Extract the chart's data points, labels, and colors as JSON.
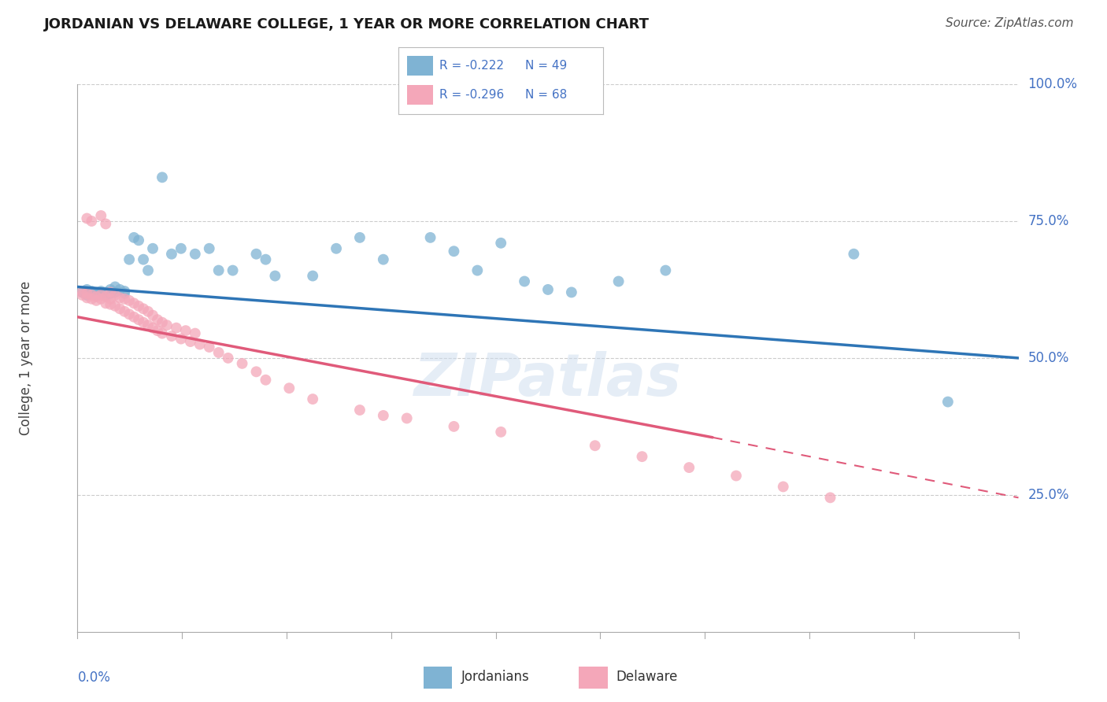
{
  "title": "JORDANIAN VS DELAWARE COLLEGE, 1 YEAR OR MORE CORRELATION CHART",
  "source": "Source: ZipAtlas.com",
  "ylabel": "College, 1 year or more",
  "xmin": 0.0,
  "xmax": 0.2,
  "ymin": 0.0,
  "ymax": 1.0,
  "ytick_vals": [
    0.25,
    0.5,
    0.75,
    1.0
  ],
  "ytick_labels": [
    "25.0%",
    "50.0%",
    "75.0%",
    "100.0%"
  ],
  "blue_color": "#7FB3D3",
  "pink_color": "#F4A7B9",
  "line_blue_color": "#2E75B6",
  "line_pink_color": "#E05A7A",
  "watermark": "ZIPatlas",
  "background_color": "#ffffff",
  "grid_color": "#cccccc",
  "blue_r": "-0.222",
  "blue_n": "49",
  "pink_r": "-0.296",
  "pink_n": "68",
  "blue_line_x0": 0.0,
  "blue_line_y0": 0.63,
  "blue_line_x1": 0.2,
  "blue_line_y1": 0.5,
  "pink_line_solid_x0": 0.0,
  "pink_line_solid_y0": 0.575,
  "pink_line_solid_x1": 0.135,
  "pink_line_solid_y1": 0.355,
  "pink_line_dash_x0": 0.135,
  "pink_line_dash_y0": 0.355,
  "pink_line_dash_x1": 0.2,
  "pink_line_dash_y1": 0.245,
  "blue_x": [
    0.001,
    0.002,
    0.002,
    0.003,
    0.003,
    0.004,
    0.004,
    0.005,
    0.005,
    0.006,
    0.006,
    0.007,
    0.007,
    0.008,
    0.008,
    0.009,
    0.01,
    0.01,
    0.011,
    0.012,
    0.013,
    0.014,
    0.015,
    0.016,
    0.018,
    0.02,
    0.022,
    0.025,
    0.028,
    0.03,
    0.033,
    0.038,
    0.04,
    0.042,
    0.05,
    0.055,
    0.06,
    0.065,
    0.075,
    0.08,
    0.085,
    0.09,
    0.095,
    0.1,
    0.105,
    0.115,
    0.125,
    0.165,
    0.185
  ],
  "blue_y": [
    0.62,
    0.615,
    0.625,
    0.618,
    0.622,
    0.62,
    0.615,
    0.622,
    0.618,
    0.62,
    0.615,
    0.625,
    0.618,
    0.62,
    0.63,
    0.625,
    0.618,
    0.622,
    0.68,
    0.72,
    0.715,
    0.68,
    0.66,
    0.7,
    0.83,
    0.69,
    0.7,
    0.69,
    0.7,
    0.66,
    0.66,
    0.69,
    0.68,
    0.65,
    0.65,
    0.7,
    0.72,
    0.68,
    0.72,
    0.695,
    0.66,
    0.71,
    0.64,
    0.625,
    0.62,
    0.64,
    0.66,
    0.69,
    0.42
  ],
  "pink_x": [
    0.001,
    0.001,
    0.002,
    0.002,
    0.003,
    0.003,
    0.004,
    0.004,
    0.005,
    0.005,
    0.006,
    0.006,
    0.007,
    0.007,
    0.007,
    0.008,
    0.008,
    0.009,
    0.009,
    0.01,
    0.01,
    0.011,
    0.011,
    0.012,
    0.012,
    0.013,
    0.013,
    0.014,
    0.014,
    0.015,
    0.015,
    0.016,
    0.016,
    0.017,
    0.017,
    0.018,
    0.018,
    0.019,
    0.02,
    0.021,
    0.022,
    0.023,
    0.024,
    0.025,
    0.026,
    0.028,
    0.03,
    0.032,
    0.035,
    0.038,
    0.04,
    0.045,
    0.05,
    0.06,
    0.065,
    0.07,
    0.08,
    0.09,
    0.11,
    0.12,
    0.13,
    0.14,
    0.15,
    0.16,
    0.002,
    0.003,
    0.005,
    0.006
  ],
  "pink_y": [
    0.62,
    0.615,
    0.618,
    0.61,
    0.615,
    0.608,
    0.612,
    0.605,
    0.615,
    0.608,
    0.612,
    0.6,
    0.608,
    0.62,
    0.598,
    0.615,
    0.595,
    0.61,
    0.59,
    0.608,
    0.585,
    0.605,
    0.58,
    0.6,
    0.575,
    0.595,
    0.57,
    0.59,
    0.565,
    0.585,
    0.56,
    0.578,
    0.555,
    0.57,
    0.55,
    0.565,
    0.545,
    0.56,
    0.54,
    0.555,
    0.535,
    0.55,
    0.53,
    0.545,
    0.525,
    0.52,
    0.51,
    0.5,
    0.49,
    0.475,
    0.46,
    0.445,
    0.425,
    0.405,
    0.395,
    0.39,
    0.375,
    0.365,
    0.34,
    0.32,
    0.3,
    0.285,
    0.265,
    0.245,
    0.755,
    0.75,
    0.76,
    0.745
  ]
}
